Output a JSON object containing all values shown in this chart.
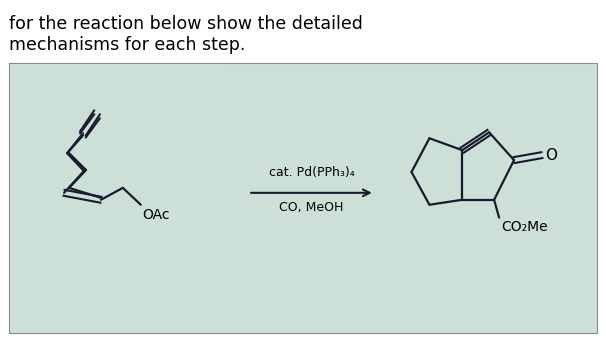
{
  "title_line1": "for the reaction below show the detailed",
  "title_line2": "mechanisms for each step.",
  "reagents_line1": "cat. Pd(PPh₃)₄",
  "reagents_line2": "CO, MeOH",
  "oac_label": "OAc",
  "co2me_label": "CO₂Me",
  "outer_bg": "#ffffff",
  "text_color": "#000000",
  "box_bg_color": "#d8e8e0"
}
